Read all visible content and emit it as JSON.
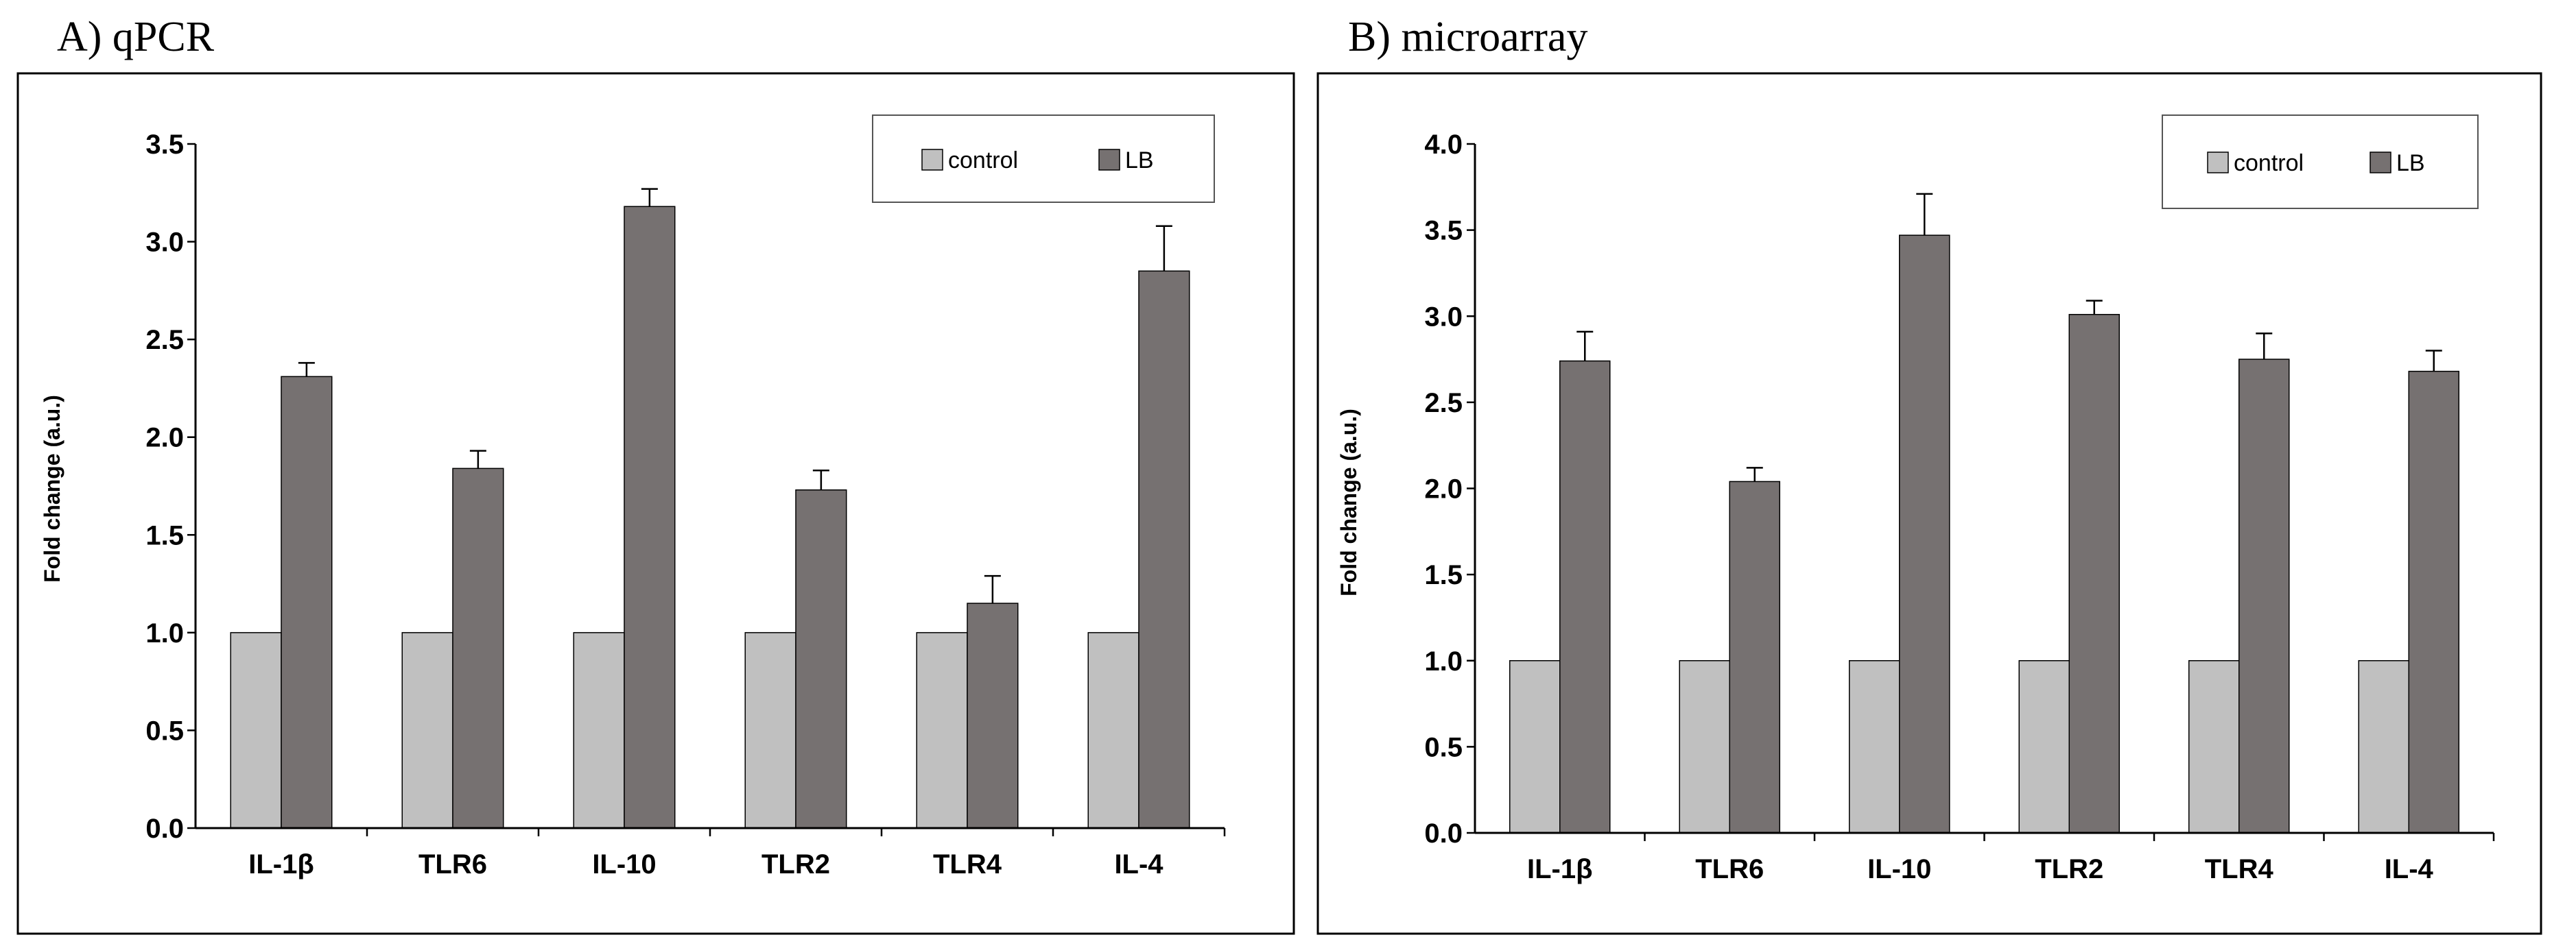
{
  "chart_data": [
    {
      "type": "bar",
      "title": "A) qPCR",
      "xlabel": "",
      "ylabel": "Fold change (a.u.)",
      "ylim": [
        0,
        3.5
      ],
      "yticks": [
        "0.0",
        "0.5",
        "1.0",
        "1.5",
        "2.0",
        "2.5",
        "3.0",
        "3.5"
      ],
      "categories": [
        "IL-1β",
        "TLR6",
        "IL-10",
        "TLR2",
        "TLR4",
        "IL-4"
      ],
      "legend_position": "top-right",
      "series": [
        {
          "name": "control",
          "color": "#c0c0c0",
          "values": [
            1.0,
            1.0,
            1.0,
            1.0,
            1.0,
            1.0
          ],
          "errors": [
            0,
            0,
            0,
            0,
            0,
            0
          ]
        },
        {
          "name": "LB",
          "color": "#767171",
          "values": [
            2.31,
            1.84,
            3.18,
            1.73,
            1.15,
            2.85
          ],
          "errors": [
            0.07,
            0.09,
            0.09,
            0.1,
            0.14,
            0.23
          ]
        }
      ]
    },
    {
      "type": "bar",
      "title": "B) microarray",
      "xlabel": "",
      "ylabel": "Fold change (a.u.)",
      "ylim": [
        0,
        4.0
      ],
      "yticks": [
        "0.0",
        "0.5",
        "1.0",
        "1.5",
        "2.0",
        "2.5",
        "3.0",
        "3.5",
        "4.0"
      ],
      "categories": [
        "IL-1β",
        "TLR6",
        "IL-10",
        "TLR2",
        "TLR4",
        "IL-4"
      ],
      "legend_position": "top-right",
      "series": [
        {
          "name": "control",
          "color": "#c0c0c0",
          "values": [
            1.0,
            1.0,
            1.0,
            1.0,
            1.0,
            1.0
          ],
          "errors": [
            0,
            0,
            0,
            0,
            0,
            0
          ]
        },
        {
          "name": "LB",
          "color": "#767171",
          "values": [
            2.74,
            2.04,
            3.47,
            3.01,
            2.75,
            2.68
          ],
          "errors": [
            0.17,
            0.08,
            0.24,
            0.08,
            0.15,
            0.12
          ]
        }
      ]
    }
  ]
}
